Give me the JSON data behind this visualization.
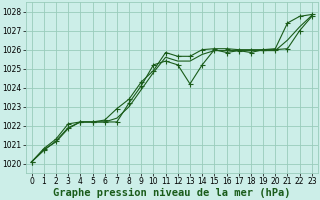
{
  "background_color": "#cceee8",
  "grid_color": "#99ccbb",
  "line_color": "#1a5c1a",
  "xlabel": "Graphe pression niveau de la mer (hPa)",
  "tick_fontsize": 5.5,
  "xlabel_fontsize": 7.5,
  "xlim": [
    -0.5,
    23.5
  ],
  "ylim": [
    1019.5,
    1028.5
  ],
  "yticks": [
    1020,
    1021,
    1022,
    1023,
    1024,
    1025,
    1026,
    1027,
    1028
  ],
  "xticks": [
    0,
    1,
    2,
    3,
    4,
    5,
    6,
    7,
    8,
    9,
    10,
    11,
    12,
    13,
    14,
    15,
    16,
    17,
    18,
    19,
    20,
    21,
    22,
    23
  ],
  "series1_x": [
    0,
    1,
    2,
    3,
    4,
    5,
    6,
    7,
    8,
    9,
    10,
    11,
    12,
    13,
    14,
    15,
    16,
    17,
    18,
    19,
    20,
    21,
    22,
    23
  ],
  "series1_y": [
    1020.1,
    1020.7,
    1021.2,
    1021.9,
    1022.2,
    1022.2,
    1022.3,
    1022.9,
    1023.4,
    1024.3,
    1024.9,
    1025.85,
    1025.65,
    1025.65,
    1026.0,
    1026.05,
    1026.05,
    1026.0,
    1026.0,
    1026.0,
    1026.05,
    1027.4,
    1027.75,
    1027.85
  ],
  "series2_x": [
    0,
    1,
    2,
    3,
    4,
    5,
    6,
    7,
    8,
    9,
    10,
    11,
    12,
    13,
    14,
    15,
    16,
    17,
    18,
    19,
    20,
    21,
    22,
    23
  ],
  "series2_y": [
    1020.1,
    1020.8,
    1021.3,
    1022.1,
    1022.2,
    1022.2,
    1022.2,
    1022.2,
    1023.2,
    1024.1,
    1025.2,
    1025.4,
    1025.2,
    1024.2,
    1025.2,
    1026.0,
    1025.85,
    1025.95,
    1025.85,
    1026.0,
    1026.0,
    1026.05,
    1027.0,
    1027.75
  ],
  "series3_x": [
    0,
    1,
    2,
    3,
    4,
    5,
    6,
    7,
    8,
    9,
    10,
    11,
    12,
    13,
    14,
    15,
    16,
    17,
    18,
    19,
    20,
    21,
    22,
    23
  ],
  "series3_y": [
    1020.1,
    1020.75,
    1021.15,
    1021.85,
    1022.2,
    1022.2,
    1022.2,
    1022.4,
    1023.0,
    1023.9,
    1024.8,
    1025.6,
    1025.4,
    1025.4,
    1025.75,
    1025.95,
    1025.95,
    1025.95,
    1025.95,
    1025.95,
    1025.95,
    1026.5,
    1027.2,
    1027.8
  ]
}
